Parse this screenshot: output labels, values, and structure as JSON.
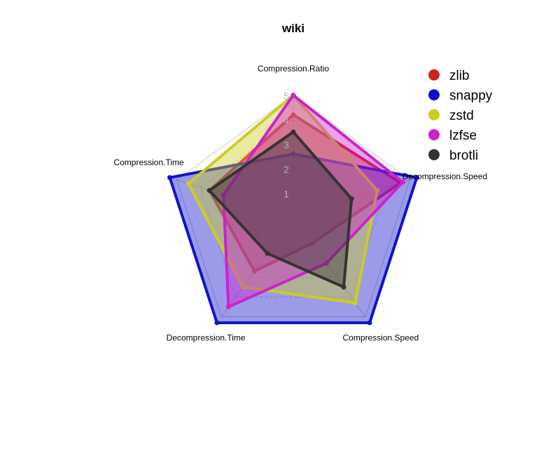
{
  "chart_data": {
    "type": "radar",
    "title": "wiki",
    "axes": [
      "Compression.Ratio",
      "Decompression.Speed",
      "Compression.Speed",
      "Decompression.Time",
      "Compression.Time"
    ],
    "rlim": [
      0,
      5
    ],
    "ticks": [
      "1",
      "2",
      "3",
      "4",
      "5"
    ],
    "grid": true,
    "legend_position": "top-right",
    "series": [
      {
        "name": "zlib",
        "color": "#cc2222",
        "values": [
          4.2,
          4.6,
          1.3,
          2.7,
          3.6
        ]
      },
      {
        "name": "snappy",
        "color": "#1111cc",
        "values": [
          2.6,
          5.3,
          5.3,
          5.3,
          5.3
        ]
      },
      {
        "name": "zstd",
        "color": "#cccc22",
        "values": [
          5.0,
          3.6,
          4.3,
          3.5,
          4.5
        ]
      },
      {
        "name": "lzfse",
        "color": "#cc22cc",
        "values": [
          5.0,
          4.7,
          2.3,
          4.5,
          3.0
        ]
      },
      {
        "name": "brotli",
        "color": "#333333",
        "values": [
          3.5,
          2.5,
          3.5,
          1.8,
          3.6
        ]
      }
    ]
  }
}
